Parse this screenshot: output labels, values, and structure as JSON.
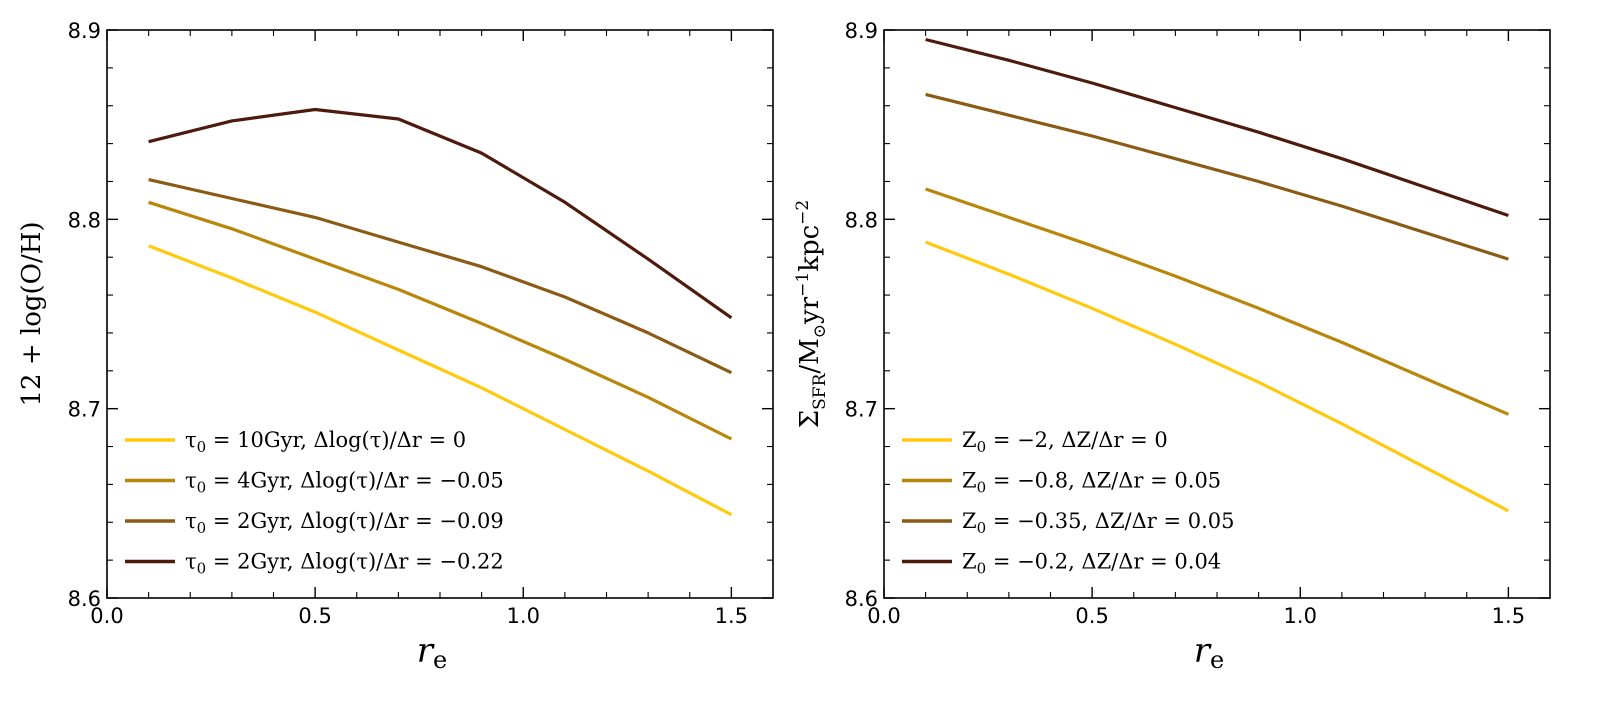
{
  "chart_data": [
    {
      "type": "line",
      "xlabel": "r",
      "xlabel_sub": "e",
      "ylabel": "12 + log(O/H)",
      "xlim": [
        0.0,
        1.6
      ],
      "ylim": [
        8.6,
        8.9
      ],
      "xticks": [
        0.0,
        0.5,
        1.0,
        1.5
      ],
      "xtick_labels": [
        "0.0",
        "0.5",
        "1.0",
        "1.5"
      ],
      "yticks": [
        8.6,
        8.7,
        8.8,
        8.9
      ],
      "ytick_labels": [
        "8.6",
        "8.7",
        "8.8",
        "8.9"
      ],
      "grid": false,
      "legend_position": "bottom-left",
      "series": [
        {
          "name": "τ₀ = 10Gyr, Δlog(τ)/Δr = 0",
          "color": "#FFC90E",
          "x": [
            0.1,
            0.3,
            0.5,
            0.7,
            0.9,
            1.1,
            1.3,
            1.5
          ],
          "y": [
            8.786,
            8.769,
            8.751,
            8.731,
            8.711,
            8.689,
            8.667,
            8.644
          ]
        },
        {
          "name": "τ₀ = 4Gyr, Δlog(τ)/Δr = −0.05",
          "color": "#B8860B",
          "x": [
            0.1,
            0.3,
            0.5,
            0.7,
            0.9,
            1.1,
            1.3,
            1.5
          ],
          "y": [
            8.809,
            8.795,
            8.779,
            8.763,
            8.745,
            8.726,
            8.706,
            8.684
          ]
        },
        {
          "name": "τ₀ = 2Gyr, Δlog(τ)/Δr = −0.09",
          "color": "#8B5A14",
          "x": [
            0.1,
            0.3,
            0.5,
            0.7,
            0.9,
            1.1,
            1.3,
            1.5
          ],
          "y": [
            8.821,
            8.811,
            8.801,
            8.788,
            8.775,
            8.759,
            8.74,
            8.719
          ]
        },
        {
          "name": "τ₀ = 2Gyr, Δlog(τ)/Δr = −0.22",
          "color": "#4E1A0C",
          "x": [
            0.1,
            0.3,
            0.5,
            0.7,
            0.9,
            1.1,
            1.3,
            1.5
          ],
          "y": [
            8.841,
            8.852,
            8.858,
            8.853,
            8.835,
            8.809,
            8.779,
            8.748
          ]
        }
      ]
    },
    {
      "type": "line",
      "xlabel": "r",
      "xlabel_sub": "e",
      "ylabel": "Σ_SFR / M⊙ yr⁻¹ kpc⁻²",
      "xlim": [
        0.0,
        1.6
      ],
      "ylim": [
        8.6,
        8.9
      ],
      "xticks": [
        0.0,
        0.5,
        1.0,
        1.5
      ],
      "xtick_labels": [
        "0.0",
        "0.5",
        "1.0",
        "1.5"
      ],
      "yticks": [
        8.6,
        8.7,
        8.8,
        8.9
      ],
      "ytick_labels": [
        "8.6",
        "8.7",
        "8.8",
        "8.9"
      ],
      "grid": false,
      "legend_position": "bottom-left",
      "series": [
        {
          "name": "Z₀ = −2, ΔZ/Δr = 0",
          "color": "#FFC90E",
          "x": [
            0.1,
            0.3,
            0.5,
            0.7,
            0.9,
            1.1,
            1.3,
            1.5
          ],
          "y": [
            8.788,
            8.771,
            8.753,
            8.734,
            8.714,
            8.692,
            8.669,
            8.646
          ]
        },
        {
          "name": "Z₀ = −0.8, ΔZ/Δr = 0.05",
          "color": "#B8860B",
          "x": [
            0.1,
            0.3,
            0.5,
            0.7,
            0.9,
            1.1,
            1.3,
            1.5
          ],
          "y": [
            8.816,
            8.801,
            8.786,
            8.77,
            8.753,
            8.735,
            8.716,
            8.697
          ]
        },
        {
          "name": "Z₀ = −0.35, ΔZ/Δr = 0.05",
          "color": "#8B5A14",
          "x": [
            0.1,
            0.3,
            0.5,
            0.7,
            0.9,
            1.1,
            1.3,
            1.5
          ],
          "y": [
            8.866,
            8.855,
            8.844,
            8.832,
            8.82,
            8.807,
            8.793,
            8.779
          ]
        },
        {
          "name": "Z₀ = −0.2, ΔZ/Δr = 0.04",
          "color": "#4E1A0C",
          "x": [
            0.1,
            0.3,
            0.5,
            0.7,
            0.9,
            1.1,
            1.3,
            1.5
          ],
          "y": [
            8.895,
            8.884,
            8.872,
            8.859,
            8.846,
            8.832,
            8.817,
            8.802
          ]
        }
      ]
    }
  ]
}
